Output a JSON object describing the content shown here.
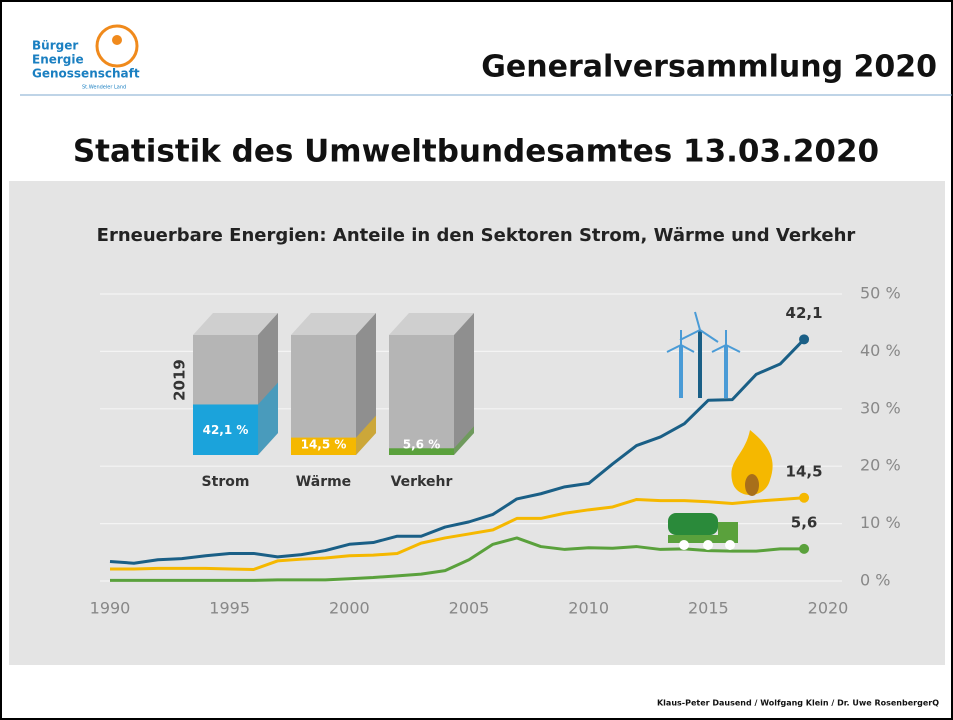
{
  "header": {
    "logo": {
      "line1": "Bürger",
      "line2": "Energie",
      "line3": "Genossenschaft",
      "line4": "St.Wendeler Land"
    },
    "title": "Generalversammlung 2020"
  },
  "heading": "Statistik des Umweltbundesamtes 13.03.2020",
  "chart_data": {
    "type": "line",
    "title": "Erneuerbare Energien: Anteile in den Sektoren Strom, Wärme und Verkehr",
    "x": [
      1990,
      1991,
      1992,
      1993,
      1994,
      1995,
      1996,
      1997,
      1998,
      1999,
      2000,
      2001,
      2002,
      2003,
      2004,
      2005,
      2006,
      2007,
      2008,
      2009,
      2010,
      2011,
      2012,
      2013,
      2014,
      2015,
      2016,
      2017,
      2018,
      2019
    ],
    "series": [
      {
        "name": "Strom",
        "color": "#1a5f86",
        "values": [
          3.4,
          3.1,
          3.7,
          3.9,
          4.4,
          4.8,
          4.8,
          4.2,
          4.6,
          5.3,
          6.4,
          6.7,
          7.8,
          7.8,
          9.4,
          10.3,
          11.6,
          14.3,
          15.2,
          16.4,
          17.0,
          20.4,
          23.6,
          25.1,
          27.4,
          31.5,
          31.6,
          36.0,
          37.8,
          42.1
        ],
        "value_labels": [
          null,
          null,
          null,
          null,
          null,
          null,
          null,
          null,
          null,
          null,
          null,
          null,
          null,
          null,
          null,
          null,
          null,
          null,
          null,
          null,
          null,
          null,
          null,
          null,
          null,
          null,
          null,
          null,
          null,
          "42,1"
        ]
      },
      {
        "name": "Wärme",
        "color": "#f5b800",
        "values": [
          2.1,
          2.1,
          2.2,
          2.2,
          2.2,
          2.1,
          2.0,
          3.5,
          3.8,
          4.0,
          4.4,
          4.5,
          4.8,
          6.6,
          7.5,
          8.2,
          8.9,
          10.9,
          10.9,
          11.8,
          12.4,
          12.9,
          14.2,
          14.0,
          14.0,
          13.8,
          13.5,
          13.9,
          14.2,
          14.5
        ],
        "value_labels": [
          null,
          null,
          null,
          null,
          null,
          null,
          null,
          null,
          null,
          null,
          null,
          null,
          null,
          null,
          null,
          null,
          null,
          null,
          null,
          null,
          null,
          null,
          null,
          null,
          null,
          null,
          null,
          null,
          null,
          "14,5"
        ]
      },
      {
        "name": "Verkehr",
        "color": "#5aa13c",
        "values": [
          0.1,
          0.1,
          0.1,
          0.1,
          0.1,
          0.1,
          0.1,
          0.2,
          0.2,
          0.2,
          0.4,
          0.6,
          0.9,
          1.2,
          1.8,
          3.7,
          6.4,
          7.5,
          6.0,
          5.5,
          5.8,
          5.7,
          6.0,
          5.5,
          5.6,
          5.3,
          5.2,
          5.2,
          5.6,
          5.6
        ],
        "value_labels": [
          null,
          null,
          null,
          null,
          null,
          null,
          null,
          null,
          null,
          null,
          null,
          null,
          null,
          null,
          null,
          null,
          null,
          null,
          null,
          null,
          null,
          null,
          null,
          null,
          null,
          null,
          null,
          null,
          null,
          "5,6"
        ]
      }
    ],
    "xlim": [
      1990,
      2020
    ],
    "xticks": [
      1990,
      1995,
      2000,
      2005,
      2010,
      2015,
      2020
    ],
    "ylim": [
      0,
      50
    ],
    "yticks": [
      {
        "value": 0,
        "label": "0 %"
      },
      {
        "value": 10,
        "label": "10 %"
      },
      {
        "value": 20,
        "label": "20 %"
      },
      {
        "value": 30,
        "label": "30 %"
      },
      {
        "value": 40,
        "label": "40 %"
      },
      {
        "value": 50,
        "label": "50 %"
      }
    ],
    "grid": true,
    "inset": {
      "year": "2019",
      "categories": [
        "Strom",
        "Wärme",
        "Verkehr"
      ],
      "values": [
        42.1,
        14.5,
        5.6
      ],
      "value_labels": [
        "42,1 %",
        "14,5 %",
        "5,6 %"
      ],
      "colors": [
        "#1ba3db",
        "#f5b800",
        "#5aa13c"
      ],
      "ylim": [
        0,
        100
      ]
    }
  },
  "footer": "Klaus-Peter Dausend / Wolfgang Klein / Dr. Uwe RosenbergerQ"
}
